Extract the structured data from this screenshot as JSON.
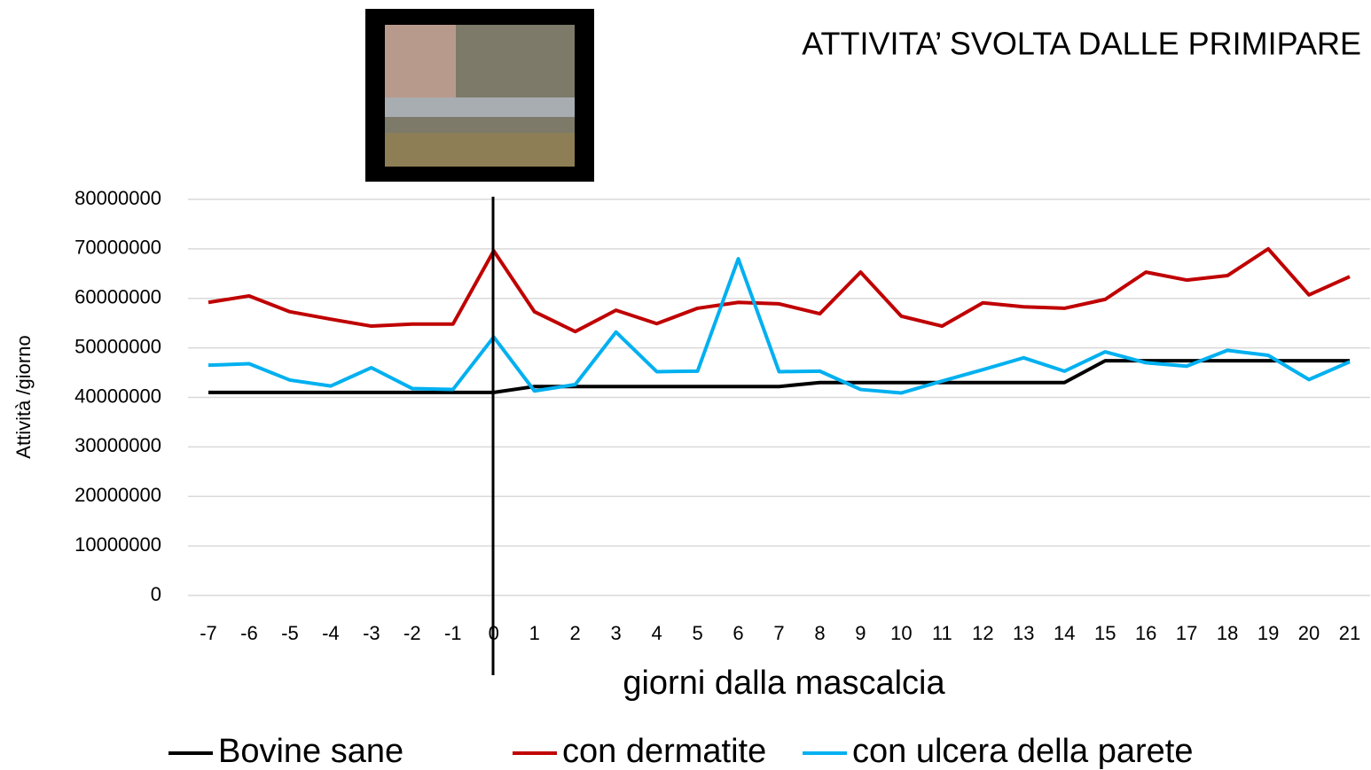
{
  "chart_data": {
    "type": "line",
    "title": "ATTIVITA’ SVOLTA DALLE PRIMIPARE",
    "x_label": "giorni dalla mascalcia",
    "y_label": "Attività /giorno",
    "categories": [
      "-7",
      "-6",
      "-5",
      "-4",
      "-3",
      "-2",
      "-1",
      "0",
      "1",
      "2",
      "3",
      "4",
      "5",
      "6",
      "7",
      "8",
      "9",
      "10",
      "11",
      "12",
      "13",
      "14",
      "15",
      "16",
      "17",
      "18",
      "19",
      "20",
      "21"
    ],
    "ylim": [
      0,
      80000000
    ],
    "yticks": [
      0,
      10000000,
      20000000,
      30000000,
      40000000,
      50000000,
      60000000,
      70000000,
      80000000
    ],
    "grid": true,
    "legend": "bottom",
    "series": [
      {
        "name": "Bovine sane",
        "color": "#000000",
        "values": [
          41000000,
          41000000,
          41000000,
          41000000,
          41000000,
          41000000,
          41000000,
          41000000,
          42200000,
          42200000,
          42200000,
          42200000,
          42200000,
          42200000,
          42200000,
          43000000,
          43000000,
          43000000,
          43000000,
          43000000,
          43000000,
          43000000,
          47400000,
          47400000,
          47400000,
          47400000,
          47400000,
          47400000,
          47400000
        ]
      },
      {
        "name": "con dermatite",
        "color": "#c00000",
        "values": [
          59200000,
          60500000,
          57300000,
          55800000,
          54400000,
          54800000,
          54800000,
          69600000,
          57300000,
          53300000,
          57600000,
          54900000,
          58000000,
          59200000,
          58900000,
          56900000,
          65300000,
          56400000,
          54400000,
          59100000,
          58300000,
          58000000,
          59800000,
          65300000,
          63700000,
          64600000,
          70000000,
          60700000,
          64400000
        ]
      },
      {
        "name": "con ulcera della parete",
        "color": "#00b0f0",
        "values": [
          46500000,
          46800000,
          43500000,
          42300000,
          46000000,
          41800000,
          41600000,
          52200000,
          41300000,
          42600000,
          53200000,
          45200000,
          45300000,
          68000000,
          45200000,
          45300000,
          41600000,
          40900000,
          43300000,
          45600000,
          48000000,
          45300000,
          49200000,
          47000000,
          46300000,
          49500000,
          48500000,
          43600000,
          47200000
        ]
      }
    ]
  }
}
